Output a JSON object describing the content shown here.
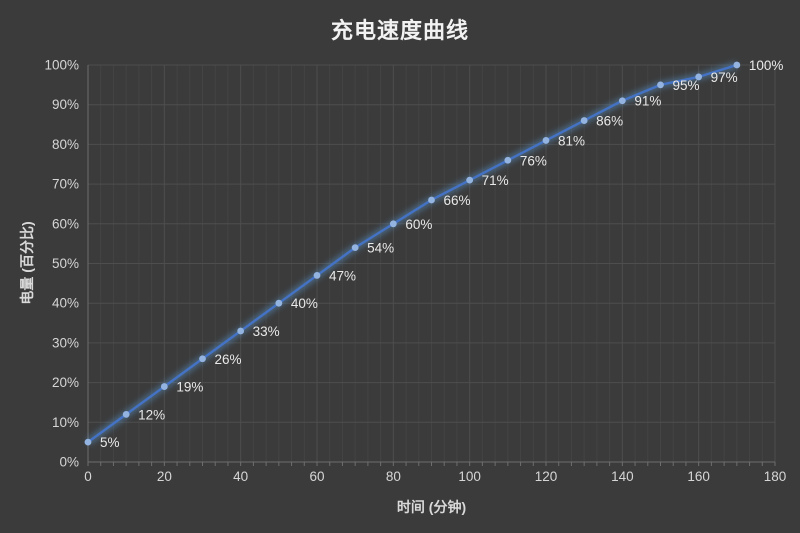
{
  "chart_data": {
    "type": "line",
    "title": "充电速度曲线",
    "xlabel": "时间 (分钟)",
    "ylabel": "电量 (百分比)",
    "x": [
      0,
      10,
      20,
      30,
      40,
      50,
      60,
      70,
      80,
      90,
      100,
      110,
      120,
      130,
      140,
      150,
      160,
      170
    ],
    "values": [
      5,
      12,
      19,
      26,
      33,
      40,
      47,
      54,
      60,
      66,
      71,
      76,
      81,
      86,
      91,
      95,
      97,
      100
    ],
    "data_labels": [
      "5%",
      "12%",
      "19%",
      "26%",
      "33%",
      "40%",
      "47%",
      "54%",
      "60%",
      "66%",
      "71%",
      "76%",
      "81%",
      "86%",
      "91%",
      "95%",
      "97%",
      "100%"
    ],
    "xlim": [
      0,
      180
    ],
    "ylim": [
      0,
      100
    ],
    "x_tick_labels": [
      "0",
      "20",
      "40",
      "60",
      "80",
      "100",
      "120",
      "140",
      "160",
      "180"
    ],
    "x_tick_values": [
      0,
      20,
      40,
      60,
      80,
      100,
      120,
      140,
      160,
      180
    ],
    "y_tick_labels": [
      "0%",
      "10%",
      "20%",
      "30%",
      "40%",
      "50%",
      "60%",
      "70%",
      "80%",
      "90%",
      "100%"
    ],
    "y_tick_values": [
      0,
      10,
      20,
      30,
      40,
      50,
      60,
      70,
      80,
      90,
      100
    ],
    "grid": "horizontal major every 10%; vertical major every 20 min with 5 minor lines between",
    "legend": "none"
  },
  "colors": {
    "background": "#3b3b3b",
    "line": "#4472c4",
    "line_glow": "#5b9bd5",
    "marker": "#93b3e0",
    "grid_major": "#4e4e4e",
    "grid_minor": "#444444",
    "axis": "#6e6e6e",
    "tick_text": "#d6d6d6",
    "data_label_text": "#e9e9e9",
    "title_text": "#f2f2f2",
    "axis_title_text": "#d9d9d9"
  }
}
